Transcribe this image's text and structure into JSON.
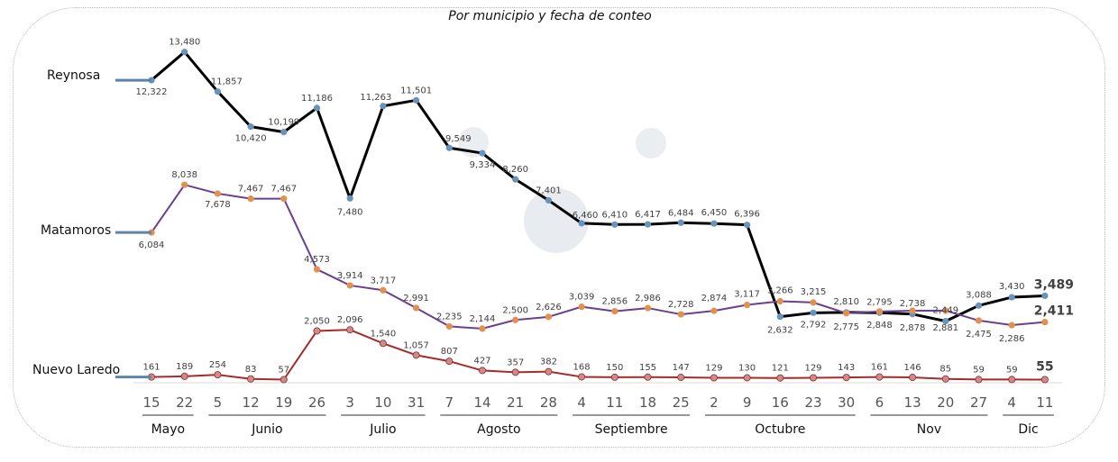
{
  "chart_data": {
    "type": "line",
    "title": "Por municipio y fecha de conteo",
    "xlabel": "",
    "ylabel": "",
    "grid": false,
    "legend": "inline-left",
    "x": [
      "15",
      "22",
      "5",
      "12",
      "19",
      "26",
      "3",
      "10",
      "31",
      "7",
      "14",
      "21",
      "28",
      "4",
      "11",
      "18",
      "25",
      "2",
      "9",
      "16",
      "23",
      "30",
      "6",
      "13",
      "20",
      "27",
      "4",
      "11"
    ],
    "months": [
      {
        "label": "Mayo",
        "from": 0,
        "to": 1
      },
      {
        "label": "Junio",
        "from": 2,
        "to": 5
      },
      {
        "label": "Julio",
        "from": 6,
        "to": 8
      },
      {
        "label": "Agosto",
        "from": 9,
        "to": 12
      },
      {
        "label": "Septiembre",
        "from": 13,
        "to": 16
      },
      {
        "label": "Octubre",
        "from": 17,
        "to": 21
      },
      {
        "label": "Nov",
        "from": 22,
        "to": 25
      },
      {
        "label": "Dic",
        "from": 26,
        "to": 27
      }
    ],
    "series": [
      {
        "name": "Reynosa",
        "line_color": "#000000",
        "marker_color": "#6a93bb",
        "values": [
          12322,
          13480,
          11857,
          10420,
          10199,
          11186,
          7480,
          11263,
          11501,
          9549,
          9334,
          8260,
          7401,
          6460,
          6410,
          6417,
          6484,
          6450,
          6396,
          2632,
          2792,
          2810,
          2795,
          2738,
          2449,
          3088,
          3430,
          3489
        ]
      },
      {
        "name": "Matamoros",
        "line_color": "#6b3f8f",
        "marker_color": "#e0914f",
        "values": [
          6084,
          8038,
          7678,
          7467,
          7467,
          4573,
          3914,
          3717,
          2991,
          2235,
          2144,
          2500,
          2626,
          3039,
          2856,
          2986,
          2728,
          2874,
          3117,
          3266,
          3215,
          2775,
          2848,
          2878,
          2881,
          2475,
          2286,
          2411
        ]
      },
      {
        "name": "Nuevo Laredo",
        "line_color": "#a82a2a",
        "marker_color": "#d08a8a",
        "values": [
          161,
          189,
          254,
          83,
          57,
          2050,
          2096,
          1540,
          1057,
          807,
          427,
          357,
          382,
          168,
          150,
          155,
          147,
          129,
          130,
          121,
          129,
          143,
          161,
          146,
          85,
          59,
          59,
          55
        ]
      }
    ],
    "labels": {
      "Reynosa": [
        "12,322",
        "13,480",
        "11,857",
        "10,420",
        "10,199",
        "11,186",
        "7,480",
        "11,263",
        "11,501",
        "9,549",
        "9,334",
        "8,260",
        "7,401",
        "6,460",
        "6,410",
        "6,417",
        "6,484",
        "6,450",
        "6,396",
        "2,632",
        "2,792",
        "2,810",
        "2,795",
        "2,738",
        "2,449",
        "3,088",
        "3,430",
        "3,489"
      ],
      "Matamoros": [
        "6,084",
        "8,038",
        "7,678",
        "7,467",
        "7,467",
        "4,573",
        "3,914",
        "3,717",
        "2,991",
        "2,235",
        "2,144",
        "2,500",
        "2,626",
        "3,039",
        "2,856",
        "2,986",
        "2,728",
        "2,874",
        "3,117",
        "3,266",
        "3,215",
        "2,775",
        "2,848",
        "2,878",
        "2,881",
        "2,475",
        "2,286",
        "2,411"
      ],
      "Nuevo Laredo": [
        "161",
        "189",
        "254",
        "83",
        "57",
        "2,050",
        "2,096",
        "1,540",
        "1,057",
        "807",
        "427",
        "357",
        "382",
        "168",
        "150",
        "155",
        "147",
        "129",
        "130",
        "121",
        "129",
        "143",
        "161",
        "146",
        "85",
        "59",
        "59",
        "55"
      ]
    },
    "ylim": [
      0,
      13500
    ]
  }
}
